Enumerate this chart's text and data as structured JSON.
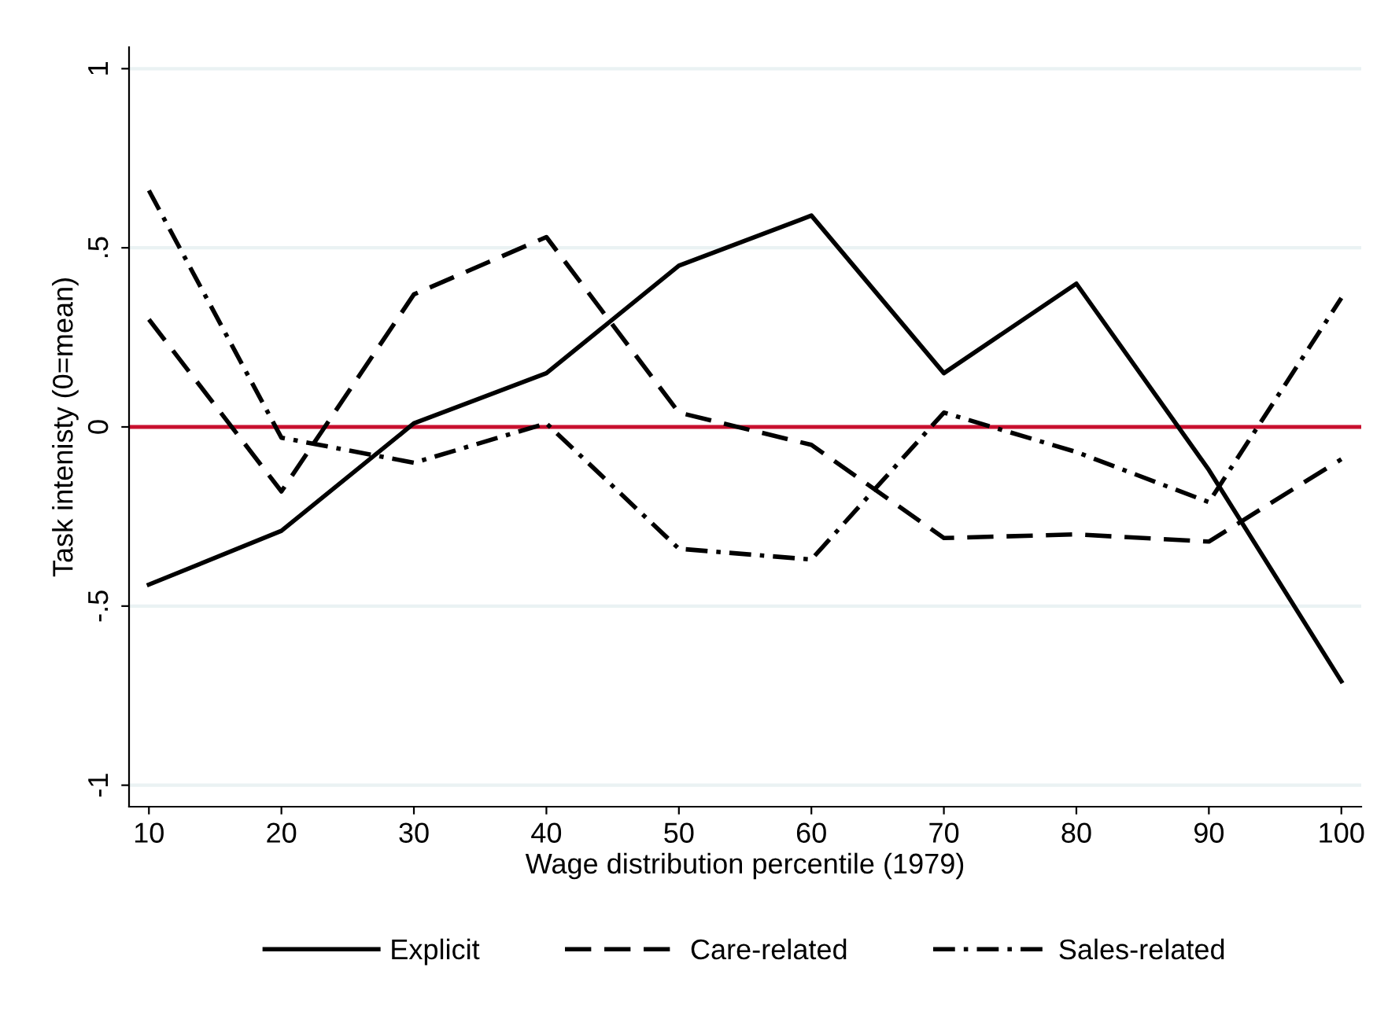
{
  "chart_data": {
    "type": "line",
    "xlabel": "Wage distribution percentile (1979)",
    "ylabel": "Task intenisty (0=mean)",
    "x": [
      10,
      20,
      30,
      40,
      50,
      60,
      70,
      80,
      90,
      100
    ],
    "series": [
      {
        "name": "Explicit",
        "color": "#000000",
        "line_style": "solid",
        "values": [
          -0.44,
          -0.29,
          0.01,
          0.15,
          0.45,
          0.59,
          0.15,
          0.4,
          -0.12,
          -0.71
        ]
      },
      {
        "name": "Care-related",
        "color": "#000000",
        "line_style": "dashed",
        "values": [
          0.3,
          -0.18,
          0.37,
          0.53,
          0.04,
          -0.05,
          -0.31,
          -0.3,
          -0.32,
          -0.09
        ]
      },
      {
        "name": "Sales-related",
        "color": "#000000",
        "line_style": "dashdot",
        "values": [
          0.66,
          -0.03,
          -0.1,
          0.01,
          -0.34,
          -0.37,
          0.04,
          -0.07,
          -0.21,
          0.36
        ]
      }
    ],
    "xlim": [
      8.5,
      101.5
    ],
    "ylim": [
      -1.06,
      1.06
    ],
    "xticks": [
      10,
      20,
      30,
      40,
      50,
      60,
      70,
      80,
      90,
      100
    ],
    "yticks": [
      {
        "value": -1,
        "label": "-1"
      },
      {
        "value": -0.5,
        "label": "-.5"
      },
      0,
      {
        "value": 0.5,
        "label": ".5"
      },
      1
    ],
    "grid": "y",
    "legend": "bottom",
    "ref_lines": [
      {
        "axis": "y",
        "value": 0,
        "color": "#c8102e"
      }
    ]
  }
}
